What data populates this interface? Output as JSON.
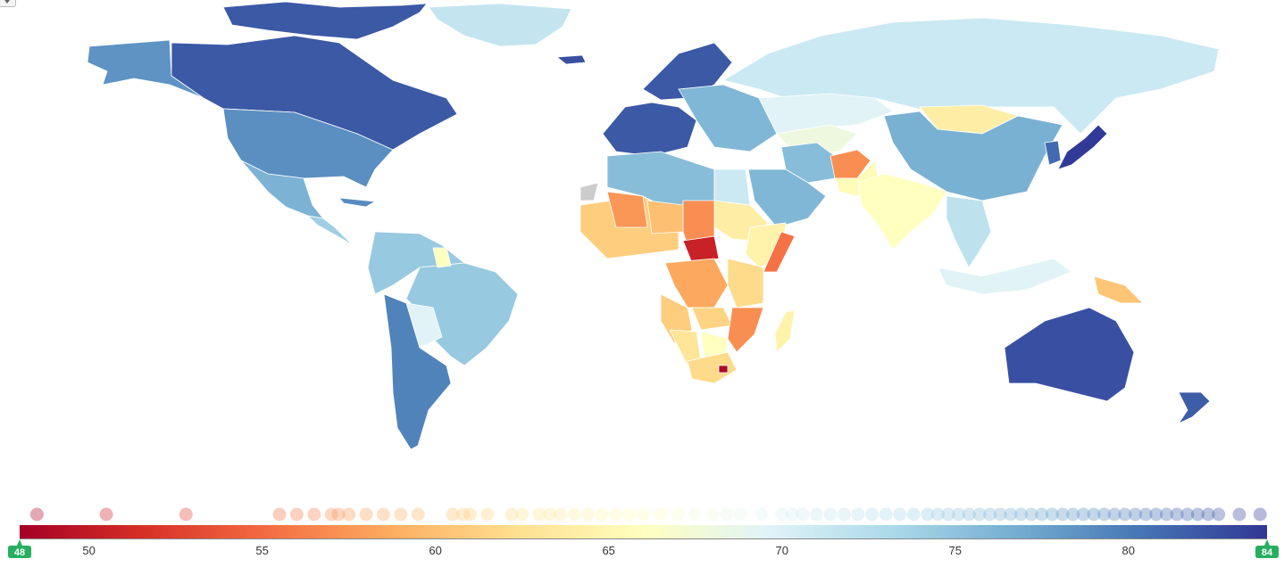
{
  "legend": {
    "min_label": "48",
    "max_label": "84",
    "ticks": [
      "50",
      "55",
      "60",
      "65",
      "70",
      "75",
      "80"
    ],
    "domain": [
      48,
      84
    ],
    "handle_color": "#27ae60"
  },
  "colors": {
    "scale": [
      "#a50026",
      "#d73027",
      "#f46d43",
      "#fdae61",
      "#fee090",
      "#ffffbf",
      "#e0f3f8",
      "#abd9e9",
      "#74add1",
      "#4575b4",
      "#313695"
    ],
    "no_data": "#cccccc",
    "border": "#ffffff"
  },
  "regions": [
    {
      "name": "Alaska",
      "value": 78.5
    },
    {
      "name": "Canada",
      "value": 82
    },
    {
      "name": "Canadian Arctic Islands",
      "value": 82
    },
    {
      "name": "Greenland",
      "value": 71.5
    },
    {
      "name": "United States",
      "value": 78.7
    },
    {
      "name": "Mexico",
      "value": 76.3
    },
    {
      "name": "Central America",
      "value": 74
    },
    {
      "name": "Cuba",
      "value": 79
    },
    {
      "name": "South America",
      "value": 74.5
    },
    {
      "name": "Brazil",
      "value": 74.5
    },
    {
      "name": "Bolivia",
      "value": 69.5
    },
    {
      "name": "Chile",
      "value": 79.5
    },
    {
      "name": "Guyana",
      "value": 66
    },
    {
      "name": "Iceland",
      "value": 82.5
    },
    {
      "name": "Western Europe",
      "value": 82
    },
    {
      "name": "Scandinavia",
      "value": 82
    },
    {
      "name": "Eastern Europe",
      "value": 76
    },
    {
      "name": "Russia",
      "value": 71
    },
    {
      "name": "Kazakhstan",
      "value": 69.5
    },
    {
      "name": "Central Asia",
      "value": 68
    },
    {
      "name": "Mongolia",
      "value": 64
    },
    {
      "name": "China",
      "value": 76.5
    },
    {
      "name": "Japan",
      "value": 83.8
    },
    {
      "name": "Korea",
      "value": 81
    },
    {
      "name": "Iran",
      "value": 75.5
    },
    {
      "name": "Arabian Peninsula",
      "value": 76
    },
    {
      "name": "Afghanistan",
      "value": 57
    },
    {
      "name": "Pakistan",
      "value": 65.5
    },
    {
      "name": "India",
      "value": 66
    },
    {
      "name": "Southeast Asia",
      "value": 72
    },
    {
      "name": "Indonesia",
      "value": 69.5
    },
    {
      "name": "Papua New Guinea",
      "value": 60.5
    },
    {
      "name": "Australia",
      "value": 82.5
    },
    {
      "name": "New Zealand",
      "value": 81.8
    },
    {
      "name": "Maghreb",
      "value": 75.5
    },
    {
      "name": "Western Sahara",
      "value": null
    },
    {
      "name": "Egypt",
      "value": 71
    },
    {
      "name": "Sudan",
      "value": 64
    },
    {
      "name": "West Africa",
      "value": 61
    },
    {
      "name": "Mali",
      "value": 57.5
    },
    {
      "name": "Niger",
      "value": 60
    },
    {
      "name": "Chad",
      "value": 57
    },
    {
      "name": "Central African Republic",
      "value": 50.5
    },
    {
      "name": "Ethiopia",
      "value": 64.5
    },
    {
      "name": "Somalia",
      "value": 55.5
    },
    {
      "name": "DR Congo",
      "value": 58.5
    },
    {
      "name": "East Africa",
      "value": 62
    },
    {
      "name": "Angola",
      "value": 61
    },
    {
      "name": "Zambia",
      "value": 61.5
    },
    {
      "name": "Mozambique",
      "value": 57
    },
    {
      "name": "Namibia",
      "value": 63
    },
    {
      "name": "Botswana",
      "value": 66
    },
    {
      "name": "South Africa",
      "value": 62
    },
    {
      "name": "Lesotho",
      "value": 48.5
    },
    {
      "name": "Madagascar",
      "value": 64.5
    }
  ],
  "strip_values": [
    48.5,
    50.5,
    52.8,
    55.5,
    56,
    56.5,
    57,
    57.2,
    57.5,
    58,
    58.5,
    59,
    59.5,
    60.5,
    60.8,
    61,
    61.5,
    62.2,
    62.5,
    63,
    63.3,
    63.6,
    64,
    64.4,
    64.8,
    65.2,
    65.6,
    66,
    66.5,
    67,
    67.5,
    68,
    68.4,
    68.8,
    69.4,
    70,
    70.3,
    70.6,
    71,
    71.4,
    71.8,
    72.2,
    72.6,
    73,
    73.4,
    73.8,
    74.2,
    74.5,
    74.8,
    75.1,
    75.4,
    75.7,
    76,
    76.3,
    76.6,
    76.9,
    77.2,
    77.5,
    77.8,
    78.1,
    78.4,
    78.7,
    79,
    79.3,
    79.6,
    79.9,
    80.2,
    80.5,
    80.8,
    81.1,
    81.4,
    81.7,
    82,
    82.3,
    82.6,
    83.2,
    83.8
  ]
}
